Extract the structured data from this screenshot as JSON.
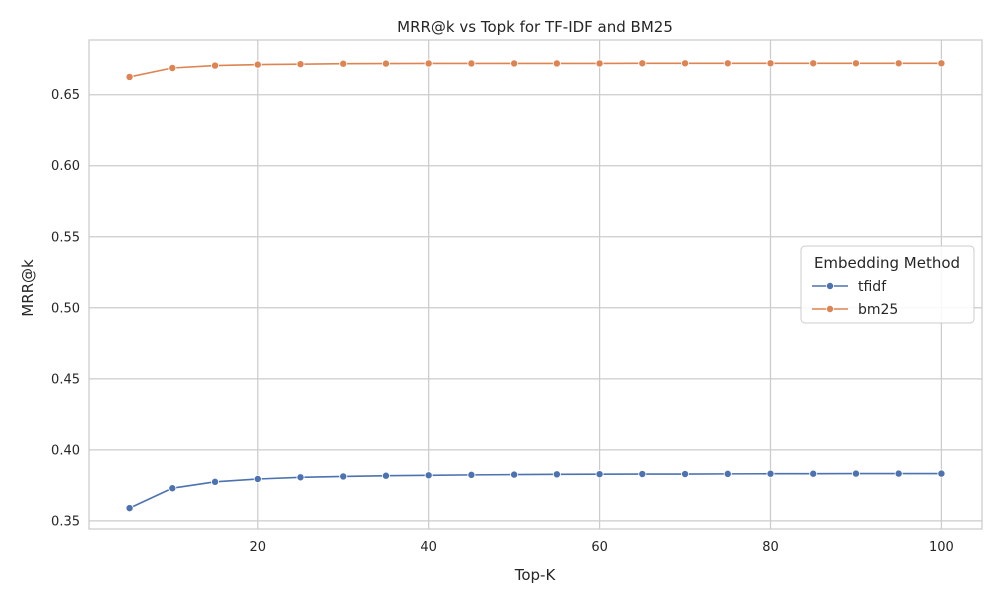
{
  "chart_data": {
    "type": "line",
    "title": "MRR@k vs Topk for TF-IDF and BM25",
    "xlabel": "Top-K",
    "ylabel": "MRR@k",
    "xlim": [
      0.25,
      104.75
    ],
    "ylim": [
      0.3443,
      0.6885
    ],
    "xticks": [
      20,
      40,
      60,
      80,
      100
    ],
    "yticks": [
      0.35,
      0.4,
      0.45,
      0.5,
      0.55,
      0.6,
      0.65
    ],
    "ytick_labels": [
      "0.35",
      "0.40",
      "0.45",
      "0.50",
      "0.55",
      "0.60",
      "0.65"
    ],
    "grid": true,
    "legend": {
      "title": "Embedding Method",
      "placement": "center-right"
    },
    "x": [
      5,
      10,
      15,
      20,
      25,
      30,
      35,
      40,
      45,
      50,
      55,
      60,
      65,
      70,
      75,
      80,
      85,
      90,
      95,
      100
    ],
    "series": [
      {
        "name": "tfidf",
        "color": "#4c72b0",
        "values": [
          0.359,
          0.373,
          0.3775,
          0.3795,
          0.3807,
          0.3813,
          0.3818,
          0.3821,
          0.3824,
          0.3826,
          0.3828,
          0.3829,
          0.383,
          0.383,
          0.3831,
          0.3832,
          0.3832,
          0.3833,
          0.3833,
          0.3833
        ]
      },
      {
        "name": "bm25",
        "color": "#dd8452",
        "values": [
          0.6625,
          0.6688,
          0.6705,
          0.6712,
          0.6715,
          0.6718,
          0.6719,
          0.672,
          0.672,
          0.672,
          0.672,
          0.672,
          0.6721,
          0.6721,
          0.6721,
          0.6721,
          0.6721,
          0.6721,
          0.6721,
          0.6721
        ]
      }
    ]
  }
}
